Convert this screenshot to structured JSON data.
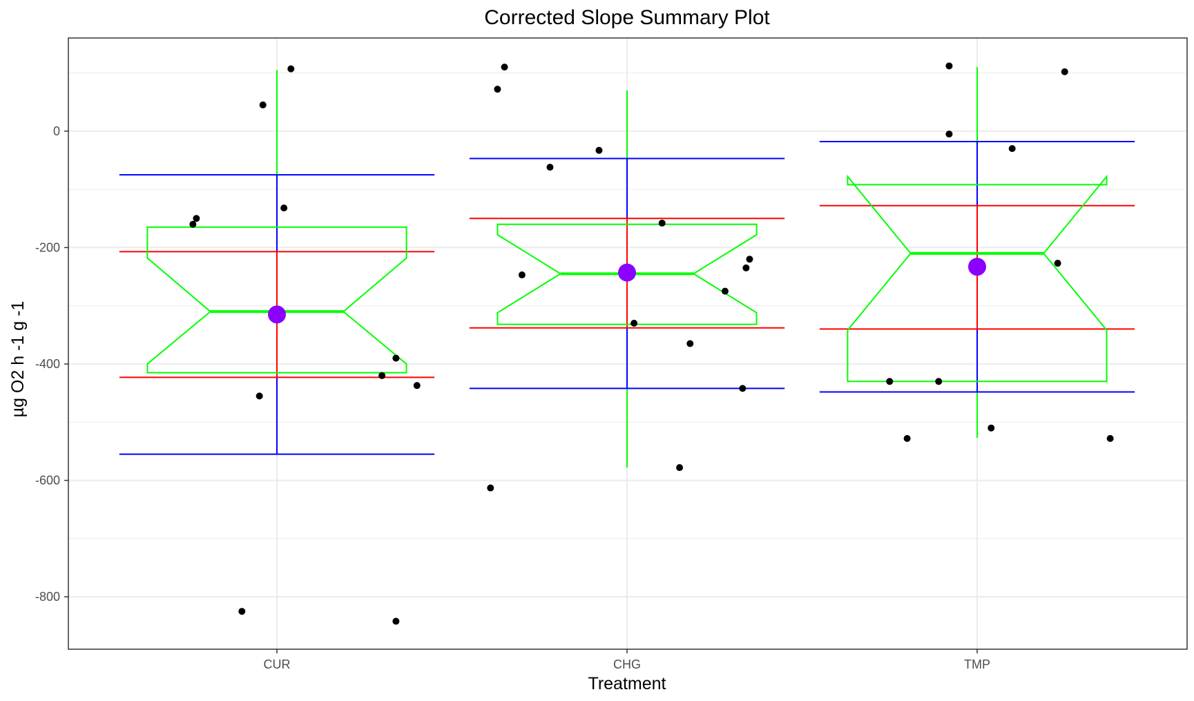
{
  "chart_data": {
    "type": "box",
    "title": "Corrected Slope Summary Plot",
    "xlabel": "Treatment",
    "ylabel": "µg O2 h -1 g -1",
    "ylim": [
      -890,
      160
    ],
    "yticks": [
      0,
      -200,
      -400,
      -600,
      -800
    ],
    "ytick_labels": [
      "0",
      "-200",
      "-400",
      "-600",
      "-800"
    ],
    "categories": [
      "CUR",
      "CHG",
      "TMP"
    ],
    "grid": true,
    "colors": {
      "notched_box": "#00ff00",
      "sd_band": "#ff0000",
      "ci_band": "#0000ff",
      "mean": "#8b00ff",
      "points": "#000000",
      "grid": "#ebebeb",
      "panel_border": "#333333"
    },
    "groups": [
      {
        "name": "CUR",
        "box": {
          "min": -555,
          "q1": -415,
          "median": -310,
          "q3": -165,
          "max": 105,
          "notch_low": -400,
          "notch_high": -218
        },
        "mean": -315,
        "sd_band": [
          -423,
          -207
        ],
        "ci_band": [
          -555,
          -75
        ],
        "points": [
          {
            "x": -0.24,
            "y": -160
          },
          {
            "x": -0.23,
            "y": -150
          },
          {
            "x": -0.05,
            "y": -455
          },
          {
            "x": -0.04,
            "y": 45
          },
          {
            "x": 0.02,
            "y": -132
          },
          {
            "x": 0.04,
            "y": 107
          },
          {
            "x": -0.1,
            "y": -825
          },
          {
            "x": 0.3,
            "y": -420
          },
          {
            "x": 0.34,
            "y": -390
          },
          {
            "x": 0.4,
            "y": -437
          },
          {
            "x": 0.34,
            "y": -842
          }
        ]
      },
      {
        "name": "CHG",
        "box": {
          "min": -578,
          "q1": -332,
          "median": -245,
          "q3": -160,
          "max": 70,
          "notch_low": -312,
          "notch_high": -178
        },
        "mean": -243,
        "sd_band": [
          -338,
          -150
        ],
        "ci_band": [
          -442,
          -47
        ],
        "points": [
          {
            "x": -0.39,
            "y": -613
          },
          {
            "x": -0.37,
            "y": 72
          },
          {
            "x": -0.35,
            "y": 110
          },
          {
            "x": -0.3,
            "y": -247
          },
          {
            "x": -0.22,
            "y": -62
          },
          {
            "x": -0.08,
            "y": -33
          },
          {
            "x": 0.02,
            "y": -330
          },
          {
            "x": 0.1,
            "y": -158
          },
          {
            "x": 0.15,
            "y": -578
          },
          {
            "x": 0.18,
            "y": -365
          },
          {
            "x": 0.28,
            "y": -275
          },
          {
            "x": 0.33,
            "y": -442
          },
          {
            "x": 0.34,
            "y": -235
          },
          {
            "x": 0.35,
            "y": -220
          }
        ]
      },
      {
        "name": "TMP",
        "box": {
          "min": -527,
          "q1": -430,
          "median": -210,
          "q3": -92,
          "max": 110,
          "notch_low": -342,
          "notch_high": -78
        },
        "mean": -233,
        "sd_band": [
          -340,
          -128
        ],
        "ci_band": [
          -448,
          -18
        ],
        "points": [
          {
            "x": -0.25,
            "y": -430
          },
          {
            "x": -0.2,
            "y": -528
          },
          {
            "x": -0.11,
            "y": -430
          },
          {
            "x": -0.08,
            "y": -5
          },
          {
            "x": -0.08,
            "y": 112
          },
          {
            "x": 0.04,
            "y": -510
          },
          {
            "x": 0.1,
            "y": -30
          },
          {
            "x": 0.23,
            "y": -227
          },
          {
            "x": 0.25,
            "y": 102
          },
          {
            "x": 0.38,
            "y": -528
          }
        ]
      }
    ]
  }
}
